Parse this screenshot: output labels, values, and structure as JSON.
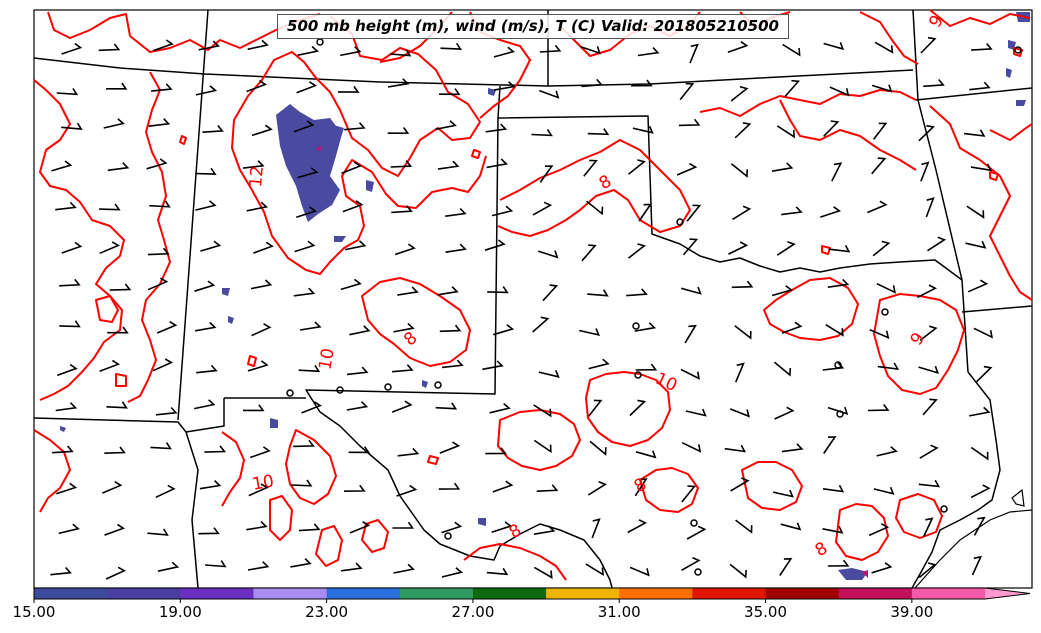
{
  "title": "500 mb height (m), wind (m/s), T (C) Valid: 201805210500",
  "contour_color": "#ff0000",
  "contour_labels": [
    "12",
    "10",
    "8",
    "10",
    "10",
    "8",
    "8",
    "9",
    "8",
    "8",
    "9"
  ],
  "colorbar": {
    "ticks": [
      "15.00",
      "19.00",
      "23.00",
      "27.00",
      "31.00",
      "35.00",
      "39.00"
    ],
    "colors": [
      "#3d4b9a",
      "#4a3fa0",
      "#6a2fc0",
      "#a98cf0",
      "#2e6fe0",
      "#2f9a62",
      "#0e6a0e",
      "#f0b400",
      "#ff7000",
      "#e21600",
      "#a00000",
      "#c2105a",
      "#f45aa8",
      "#ff9ad0"
    ]
  }
}
